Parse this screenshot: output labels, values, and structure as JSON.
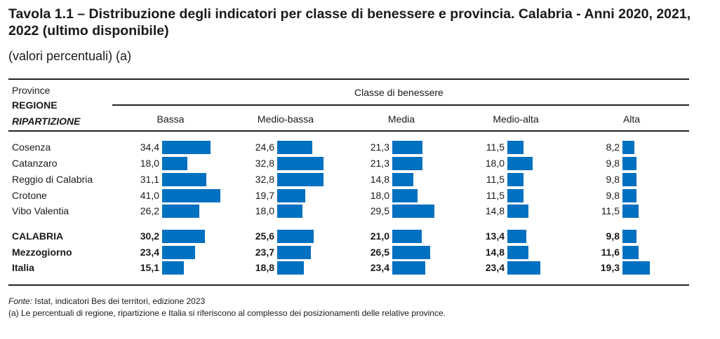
{
  "title": "Tavola 1.1 – Distribuzione degli indicatori per classe di benessere e provincia. Calabria - Anni 2020, 2021, 2022 (ultimo disponibile)",
  "subtitle": "(valori percentuali) (a)",
  "header": {
    "line1": "Province",
    "line2": "REGIONE",
    "line3": "RIPARTIZIONE",
    "group": "Classe di benessere"
  },
  "colors": {
    "bar": "#0070c0"
  },
  "chart_data": {
    "type": "table",
    "categories": [
      "Bassa",
      "Medio-bassa",
      "Media",
      "Medio-alta",
      "Alta"
    ],
    "rows": [
      {
        "label": "Cosenza",
        "bold": false,
        "values": [
          "34,4",
          "24,6",
          "21,3",
          "11,5",
          "8,2"
        ]
      },
      {
        "label": "Catanzaro",
        "bold": false,
        "values": [
          "18,0",
          "32,8",
          "21,3",
          "18,0",
          "9,8"
        ]
      },
      {
        "label": "Reggio di Calabria",
        "bold": false,
        "values": [
          "31,1",
          "32,8",
          "14,8",
          "11,5",
          "9,8"
        ]
      },
      {
        "label": "Crotone",
        "bold": false,
        "values": [
          "41,0",
          "19,7",
          "18,0",
          "11,5",
          "9,8"
        ]
      },
      {
        "label": "Vibo Valentia",
        "bold": false,
        "values": [
          "26,2",
          "18,0",
          "29,5",
          "14,8",
          "11,5"
        ]
      },
      {
        "label": "CALABRIA",
        "bold": true,
        "values": [
          "30,2",
          "25,6",
          "21,0",
          "13,4",
          "9,8"
        ]
      },
      {
        "label": "Mezzogiorno",
        "bold": true,
        "values": [
          "23,4",
          "23,7",
          "26,5",
          "14,8",
          "11,6"
        ]
      },
      {
        "label": "Italia",
        "bold": true,
        "values": [
          "15,1",
          "18,8",
          "23,4",
          "23,4",
          "19,3"
        ]
      }
    ]
  },
  "footnotes": {
    "source_label": "Fonte:",
    "source": " Istat, indicatori Bes dei territori, edizione 2023",
    "note": "(a) Le percentuali di regione, ripartizione e Italia si riferiscono al complesso dei posizionamenti delle relative province."
  }
}
